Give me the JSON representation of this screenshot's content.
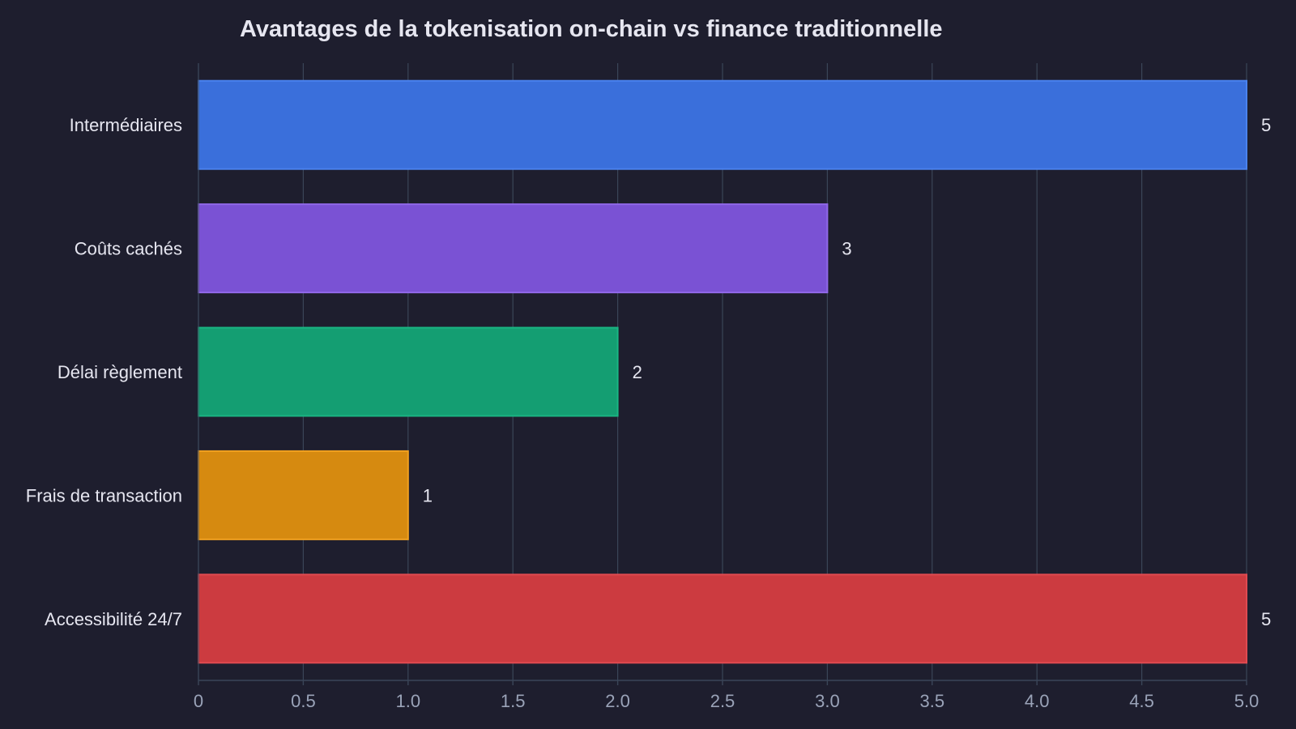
{
  "chart_data": {
    "type": "bar",
    "orientation": "horizontal",
    "title": "Avantages de la tokenisation on-chain vs finance traditionnelle",
    "xlabel": "",
    "ylabel": "",
    "categories": [
      "Intermédiaires",
      "Coûts cachés",
      "Délai règlement",
      "Frais de transaction",
      "Accessibilité 24/7"
    ],
    "values": [
      5,
      3,
      2,
      1,
      5
    ],
    "value_labels": [
      "5",
      "3",
      "2",
      "1",
      "5"
    ],
    "colors": [
      "#3a6fdb",
      "#7a52d4",
      "#149e72",
      "#d68a10",
      "#cc3b40"
    ],
    "border_colors": [
      "#4a82ee",
      "#9068e8",
      "#1ab583",
      "#f0a020",
      "#e04a50"
    ],
    "xlim": [
      0,
      5
    ],
    "xticks": [
      0,
      0.5,
      1,
      1.5,
      2,
      2.5,
      3,
      3.5,
      4,
      4.5,
      5
    ],
    "xtick_labels": [
      "0",
      "0.5",
      "1.0",
      "1.5",
      "2.0",
      "2.5",
      "3.0",
      "3.5",
      "4.0",
      "4.5",
      "5.0"
    ],
    "grid": "vertical",
    "legend": "none"
  },
  "theme": {
    "background": "#1e1e2e",
    "grid_color": "#3a4558",
    "text_color": "#e6e6f0",
    "tick_color": "#9aa3b8"
  }
}
